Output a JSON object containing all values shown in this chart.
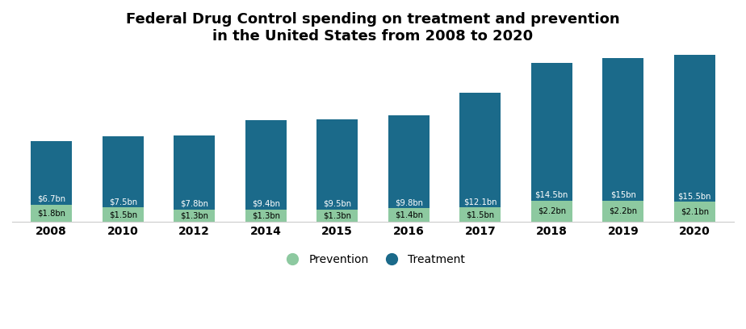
{
  "title": "Federal Drug Control spending on treatment and prevention\nin the United States from 2008 to 2020",
  "years": [
    "2008",
    "2010",
    "2012",
    "2014",
    "2015",
    "2016",
    "2017",
    "2018",
    "2019",
    "2020"
  ],
  "prevention": [
    1.8,
    1.5,
    1.3,
    1.3,
    1.3,
    1.4,
    1.5,
    2.2,
    2.2,
    2.1
  ],
  "treatment": [
    6.7,
    7.5,
    7.8,
    9.4,
    9.5,
    9.8,
    12.1,
    14.5,
    15.0,
    15.5
  ],
  "prevention_labels": [
    "$1.8bn",
    "$1.5bn",
    "$1.3bn",
    "$1.3bn",
    "$1.3bn",
    "$1.4bn",
    "$1.5bn",
    "$2.2bn",
    "$2.2bn",
    "$2.1bn"
  ],
  "treatment_labels": [
    "$6.7bn",
    "$7.5bn",
    "$7.8bn",
    "$9.4bn",
    "$9.5bn",
    "$9.8bn",
    "$12.1bn",
    "$14.5bn",
    "$15bn",
    "$15.5bn"
  ],
  "prevention_color": "#8dc9a0",
  "treatment_color": "#1b6a8a",
  "background_color": "#ffffff",
  "title_fontsize": 13,
  "bar_width": 0.58,
  "legend_labels": [
    "Prevention",
    "Treatment"
  ],
  "ylim_max": 17.7
}
